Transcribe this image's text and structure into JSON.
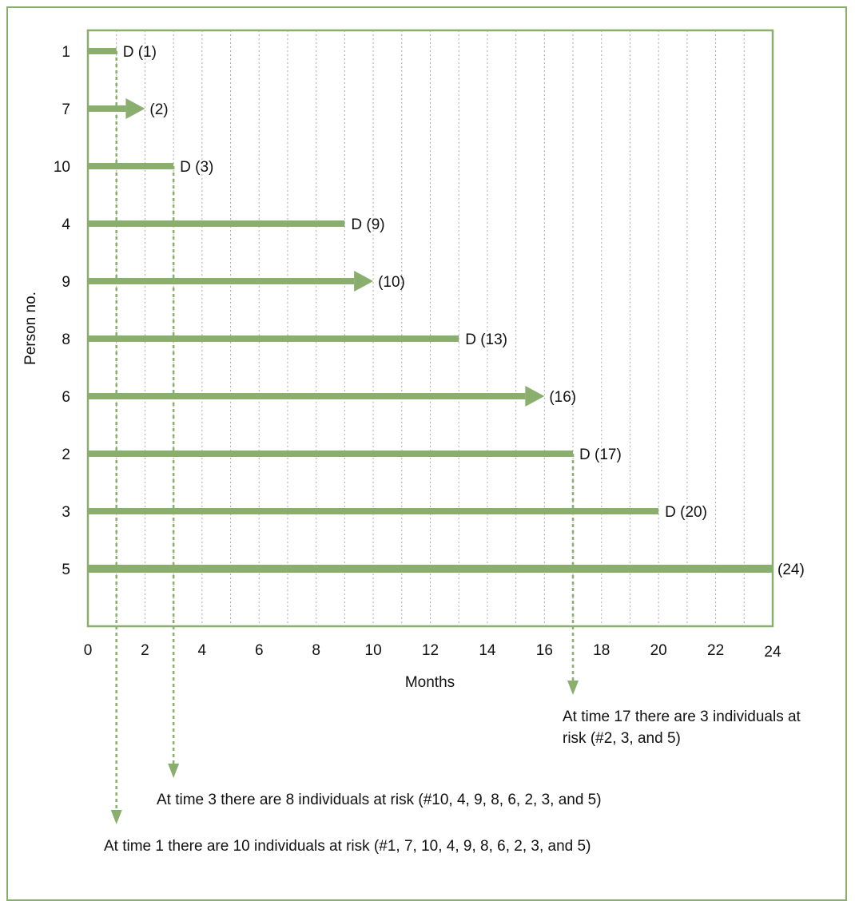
{
  "chart_data": {
    "type": "swimmer",
    "xlabel": "Months",
    "ylabel": "Person no.",
    "xlim": [
      0,
      24
    ],
    "x_ticks": [
      0,
      2,
      4,
      6,
      8,
      10,
      12,
      14,
      16,
      18,
      20,
      22,
      24
    ],
    "grid": "vertical dotted at every month",
    "color": "#8aae6e",
    "subjects": [
      {
        "person": "1",
        "time": 1,
        "event": "death",
        "label": "D (1)"
      },
      {
        "person": "7",
        "time": 2,
        "event": "censored",
        "label": "(2)"
      },
      {
        "person": "10",
        "time": 3,
        "event": "death",
        "label": "D (3)"
      },
      {
        "person": "4",
        "time": 9,
        "event": "death",
        "label": "D (9)"
      },
      {
        "person": "9",
        "time": 10,
        "event": "censored",
        "label": "(10)"
      },
      {
        "person": "8",
        "time": 13,
        "event": "death",
        "label": "D (13)"
      },
      {
        "person": "6",
        "time": 16,
        "event": "censored",
        "label": "(16)"
      },
      {
        "person": "2",
        "time": 17,
        "event": "death",
        "label": "D (17)"
      },
      {
        "person": "3",
        "time": 20,
        "event": "death",
        "label": "D (20)"
      },
      {
        "person": "5",
        "time": 24,
        "event": "none",
        "label": "(24)"
      }
    ],
    "annotations": [
      {
        "time": 17,
        "lines": [
          "At time 17 there are 3 individuals at",
          "risk (#2, 3, and 5)"
        ]
      },
      {
        "time": 3,
        "lines": [
          "At time 3 there are 8 individuals at risk (#10, 4, 9, 8, 6, 2, 3, and 5)"
        ]
      },
      {
        "time": 1,
        "lines": [
          "At time 1 there are 10 individuals at risk (#1, 7, 10, 4, 9, 8, 6, 2, 3, and 5)"
        ]
      }
    ]
  }
}
